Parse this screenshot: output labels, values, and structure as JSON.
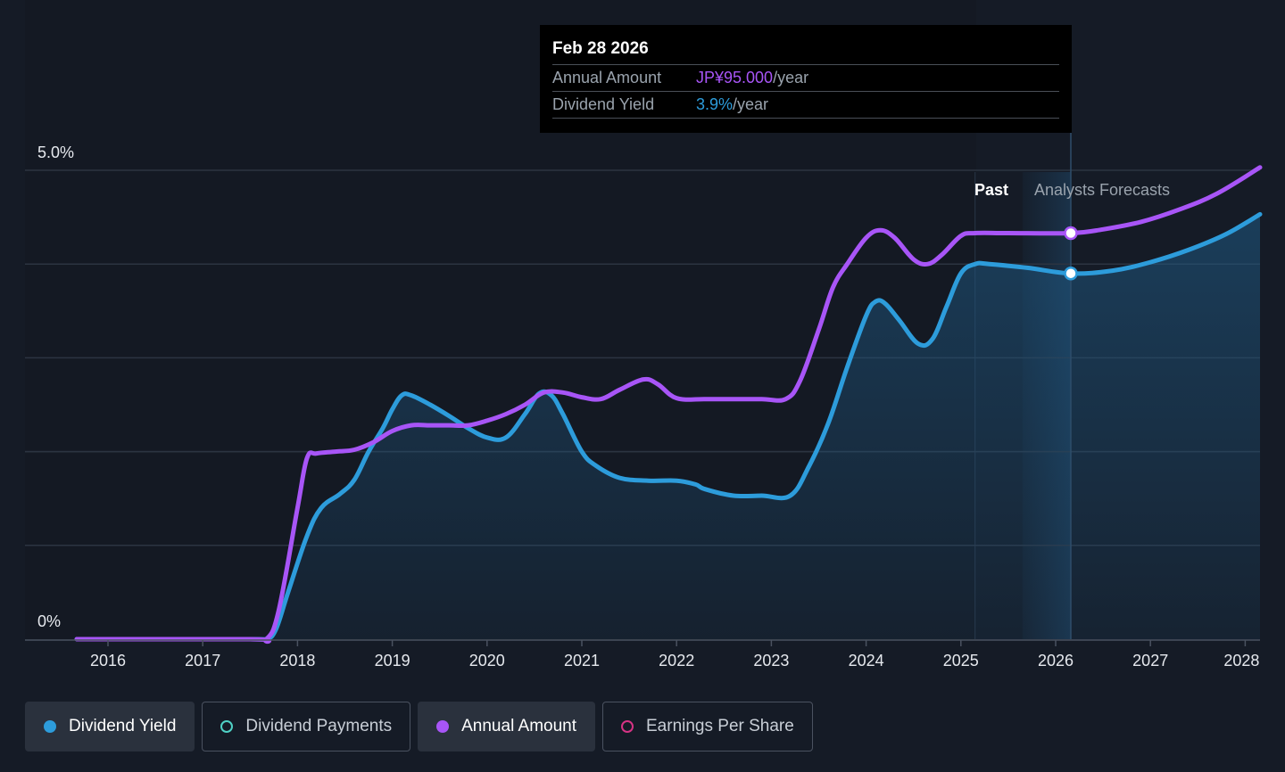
{
  "tooltip": {
    "date": "Feb 28 2026",
    "rows": [
      {
        "label": "Annual Amount",
        "value": "JP¥95.000",
        "unit": "/year"
      },
      {
        "label": "Dividend Yield",
        "value": "3.9%",
        "unit": "/year"
      }
    ]
  },
  "regions": {
    "past": "Past",
    "forecast": "Analysts Forecasts"
  },
  "legend": [
    {
      "label": "Dividend Yield",
      "color": "#2d9cdb",
      "active": true
    },
    {
      "label": "Dividend Payments",
      "color": "#4fd1c5",
      "active": false
    },
    {
      "label": "Annual Amount",
      "color": "#a855f7",
      "active": true
    },
    {
      "label": "Earnings Per Share",
      "color": "#d63384",
      "active": false
    }
  ],
  "chart_data": {
    "type": "line",
    "x_ticks": [
      "2016",
      "2017",
      "2018",
      "2019",
      "2020",
      "2021",
      "2022",
      "2023",
      "2024",
      "2025",
      "2026",
      "2027",
      "2028"
    ],
    "y_tick_labels": [
      "5.0%",
      "0%"
    ],
    "ylim": [
      0,
      5.0
    ],
    "grid": true,
    "series": [
      {
        "name": "Dividend Yield",
        "color": "#2d9cdb",
        "x": [
          2015.67,
          2017.5,
          2017.67,
          2017.77,
          2017.9,
          2018.1,
          2018.25,
          2018.45,
          2018.6,
          2018.75,
          2018.9,
          2019.0,
          2019.1,
          2019.2,
          2019.4,
          2019.6,
          2019.8,
          2020.0,
          2020.2,
          2020.4,
          2020.55,
          2020.68,
          2020.8,
          2021.0,
          2021.15,
          2021.4,
          2021.7,
          2022.0,
          2022.2,
          2022.3,
          2022.6,
          2022.9,
          2023.2,
          2023.4,
          2023.6,
          2023.8,
          2024.0,
          2024.1,
          2024.2,
          2024.35,
          2024.55,
          2024.7,
          2024.85,
          2025.0,
          2025.15,
          2025.3,
          2025.7,
          2026.16,
          2026.6,
          2027.0,
          2027.4,
          2027.8,
          2028.2
        ],
        "y": [
          0.0,
          0.0,
          0.0,
          0.1,
          0.5,
          1.1,
          1.4,
          1.55,
          1.7,
          2.0,
          2.25,
          2.45,
          2.6,
          2.6,
          2.5,
          2.38,
          2.25,
          2.15,
          2.15,
          2.4,
          2.62,
          2.6,
          2.4,
          2.0,
          1.85,
          1.72,
          1.69,
          1.69,
          1.65,
          1.6,
          1.53,
          1.53,
          1.53,
          1.85,
          2.3,
          2.9,
          3.45,
          3.6,
          3.58,
          3.4,
          3.15,
          3.2,
          3.55,
          3.9,
          4.0,
          4.0,
          3.96,
          3.9,
          3.93,
          4.02,
          4.15,
          4.32,
          4.53
        ]
      },
      {
        "name": "Annual Amount",
        "color": "#a855f7",
        "x": [
          2015.67,
          2017.5,
          2017.67,
          2017.8,
          2018.0,
          2018.1,
          2018.2,
          2018.4,
          2018.6,
          2018.8,
          2019.0,
          2019.2,
          2019.4,
          2019.6,
          2019.8,
          2020.0,
          2020.2,
          2020.4,
          2020.6,
          2020.8,
          2021.0,
          2021.2,
          2021.4,
          2021.65,
          2021.8,
          2022.0,
          2022.3,
          2022.6,
          2022.9,
          2023.15,
          2023.3,
          2023.5,
          2023.65,
          2023.8,
          2024.0,
          2024.15,
          2024.3,
          2024.5,
          2024.65,
          2024.8,
          2025.0,
          2025.15,
          2025.5,
          2026.16,
          2026.5,
          2026.9,
          2027.3,
          2027.7,
          2028.2
        ],
        "y": [
          0.0,
          0.0,
          0.0,
          0.3,
          1.4,
          1.93,
          1.98,
          2.0,
          2.02,
          2.1,
          2.22,
          2.28,
          2.28,
          2.28,
          2.28,
          2.33,
          2.4,
          2.5,
          2.63,
          2.63,
          2.58,
          2.56,
          2.66,
          2.77,
          2.72,
          2.57,
          2.56,
          2.56,
          2.56,
          2.56,
          2.75,
          3.3,
          3.75,
          4.0,
          4.28,
          4.36,
          4.28,
          4.05,
          4.0,
          4.1,
          4.3,
          4.33,
          4.33,
          4.33,
          4.37,
          4.45,
          4.58,
          4.75,
          5.03
        ]
      }
    ],
    "highlight": {
      "x": 2026.16,
      "values": [
        {
          "series": "Dividend Yield",
          "y": 3.9
        },
        {
          "series": "Annual Amount",
          "y": 4.33
        }
      ]
    },
    "past_forecast_boundary": 2025.65
  }
}
